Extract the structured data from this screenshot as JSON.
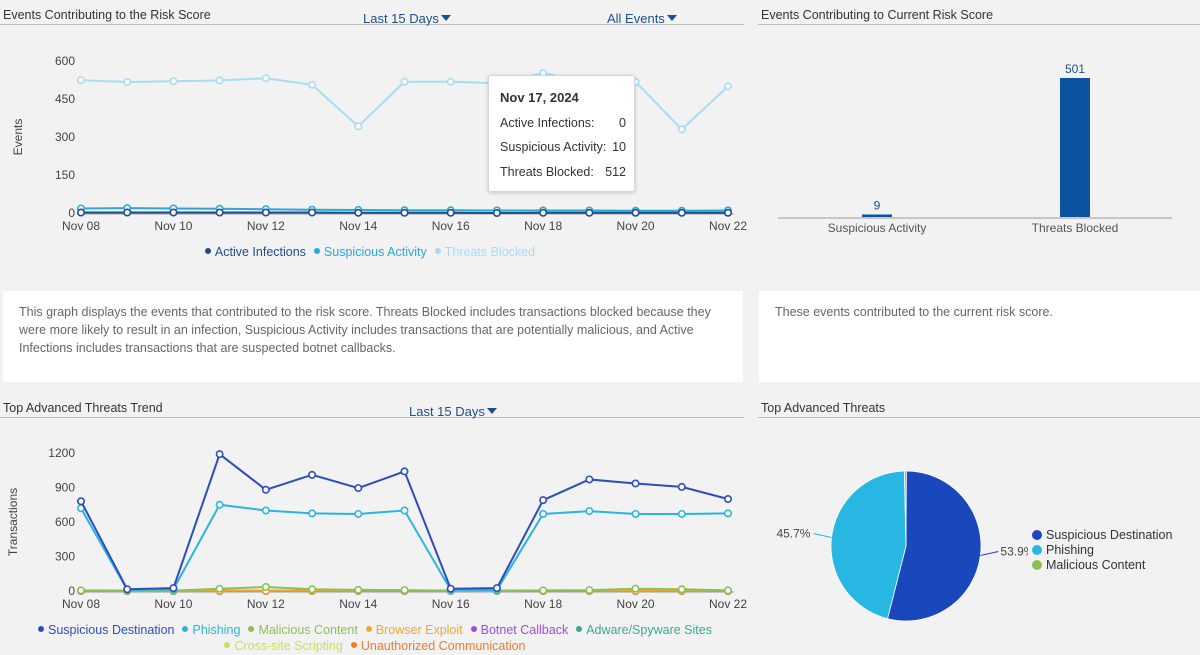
{
  "panels": {
    "risk_events": {
      "title": "Events Contributing to the Risk Score",
      "range_dropdown": "Last 15 Days",
      "events_dropdown": "All Events",
      "description": "This graph displays the events that contributed to the risk score. Threats Blocked includes transactions blocked because they were more likely to result in an infection, Suspicious Activity includes transactions that are potentially malicious, and Active Infections includes transactions that are suspected botnet callbacks."
    },
    "current_risk": {
      "title": "Events Contributing to Current Risk Score",
      "description": "These events contributed to the current risk score."
    },
    "threat_trend": {
      "title": "Top Advanced Threats Trend",
      "range_dropdown": "Last 15 Days"
    },
    "top_threats": {
      "title": "Top Advanced Threats"
    }
  },
  "tooltip": {
    "date": "Nov 17, 2024",
    "rows": [
      {
        "label": "Active Infections:",
        "value": "0"
      },
      {
        "label": "Suspicious Activity:",
        "value": "10"
      },
      {
        "label": "Threats Blocked:",
        "value": "512"
      }
    ]
  },
  "chart_data": [
    {
      "id": "risk_line",
      "type": "line",
      "ylabel": "Events",
      "ylim": [
        0,
        600
      ],
      "yticks": [
        0,
        150,
        300,
        450,
        600
      ],
      "x": [
        "Nov 08",
        "Nov 09",
        "Nov 10",
        "Nov 11",
        "Nov 12",
        "Nov 13",
        "Nov 14",
        "Nov 15",
        "Nov 16",
        "Nov 17",
        "Nov 18",
        "Nov 19",
        "Nov 20",
        "Nov 21",
        "Nov 22"
      ],
      "xtick_labels": [
        "Nov 08",
        "Nov 10",
        "Nov 12",
        "Nov 14",
        "Nov 16",
        "Nov 18",
        "Nov 20",
        "Nov 22"
      ],
      "series": [
        {
          "name": "Active Infections",
          "color": "#1f4e8c",
          "values": [
            2,
            2,
            2,
            2,
            2,
            2,
            1,
            1,
            1,
            0,
            1,
            1,
            1,
            1,
            1
          ]
        },
        {
          "name": "Suspicious Activity",
          "color": "#2aa8d8",
          "values": [
            18,
            19,
            18,
            17,
            15,
            13,
            12,
            11,
            11,
            10,
            10,
            10,
            9,
            9,
            10
          ]
        },
        {
          "name": "Threats Blocked",
          "color": "#a8dcf6",
          "values": [
            524,
            517,
            520,
            523,
            532,
            506,
            342,
            518,
            518,
            512,
            552,
            515,
            518,
            330,
            500
          ]
        }
      ],
      "legend_position": "bottom"
    },
    {
      "id": "current_bar",
      "type": "bar",
      "categories": [
        "Suspicious Activity",
        "Threats Blocked"
      ],
      "values": [
        9,
        501
      ],
      "color": "#0b52a0"
    },
    {
      "id": "trend_line",
      "type": "line",
      "ylabel": "Transactions",
      "ylim": [
        0,
        1200
      ],
      "yticks": [
        0,
        300,
        600,
        900,
        1200
      ],
      "x": [
        "Nov 08",
        "Nov 09",
        "Nov 10",
        "Nov 11",
        "Nov 12",
        "Nov 13",
        "Nov 14",
        "Nov 15",
        "Nov 16",
        "Nov 17",
        "Nov 18",
        "Nov 19",
        "Nov 20",
        "Nov 21",
        "Nov 22"
      ],
      "xtick_labels": [
        "Nov 08",
        "Nov 10",
        "Nov 12",
        "Nov 14",
        "Nov 16",
        "Nov 18",
        "Nov 20",
        "Nov 22"
      ],
      "series": [
        {
          "name": "Suspicious Destination",
          "color": "#2e4dbd",
          "values": [
            780,
            15,
            25,
            1190,
            880,
            1010,
            895,
            1040,
            20,
            25,
            790,
            970,
            935,
            905,
            800
          ]
        },
        {
          "name": "Phishing",
          "color": "#29b5e0",
          "values": [
            720,
            10,
            15,
            750,
            700,
            675,
            670,
            700,
            10,
            10,
            670,
            695,
            670,
            670,
            675
          ]
        },
        {
          "name": "Malicious Content",
          "color": "#8cc152",
          "values": [
            5,
            3,
            3,
            20,
            35,
            15,
            10,
            8,
            3,
            3,
            5,
            8,
            20,
            15,
            5
          ]
        },
        {
          "name": "Browser Exploit",
          "color": "#f0a830",
          "values": [
            2,
            1,
            1,
            2,
            2,
            2,
            2,
            2,
            1,
            1,
            2,
            2,
            2,
            2,
            2
          ]
        },
        {
          "name": "Botnet Callback",
          "color": "#9b4fd1",
          "values": [
            0,
            0,
            0,
            0,
            0,
            0,
            0,
            0,
            0,
            0,
            0,
            0,
            0,
            0,
            0
          ]
        },
        {
          "name": "Adware/Spyware Sites",
          "color": "#3aa896",
          "values": [
            1,
            0,
            0,
            1,
            1,
            1,
            1,
            1,
            0,
            0,
            1,
            1,
            1,
            1,
            1
          ]
        },
        {
          "name": "Cross-site Scripting",
          "color": "#c9e05a",
          "values": [
            0,
            0,
            0,
            0,
            0,
            0,
            0,
            0,
            0,
            0,
            0,
            0,
            0,
            0,
            0
          ]
        },
        {
          "name": "Unauthorized Communication",
          "color": "#f07b2a",
          "values": [
            3,
            2,
            2,
            3,
            3,
            3,
            3,
            3,
            2,
            2,
            3,
            3,
            3,
            3,
            3
          ]
        }
      ],
      "legend_position": "bottom"
    },
    {
      "id": "threat_pie",
      "type": "pie",
      "slices": [
        {
          "name": "Suspicious Destination",
          "value": 53.9,
          "label": "53.9%",
          "color": "#1b47bd"
        },
        {
          "name": "Phishing",
          "value": 45.7,
          "label": "45.7%",
          "color": "#27b7e2"
        },
        {
          "name": "Malicious Content",
          "value": 0.4,
          "label": "",
          "color": "#8cc152"
        }
      ]
    }
  ]
}
